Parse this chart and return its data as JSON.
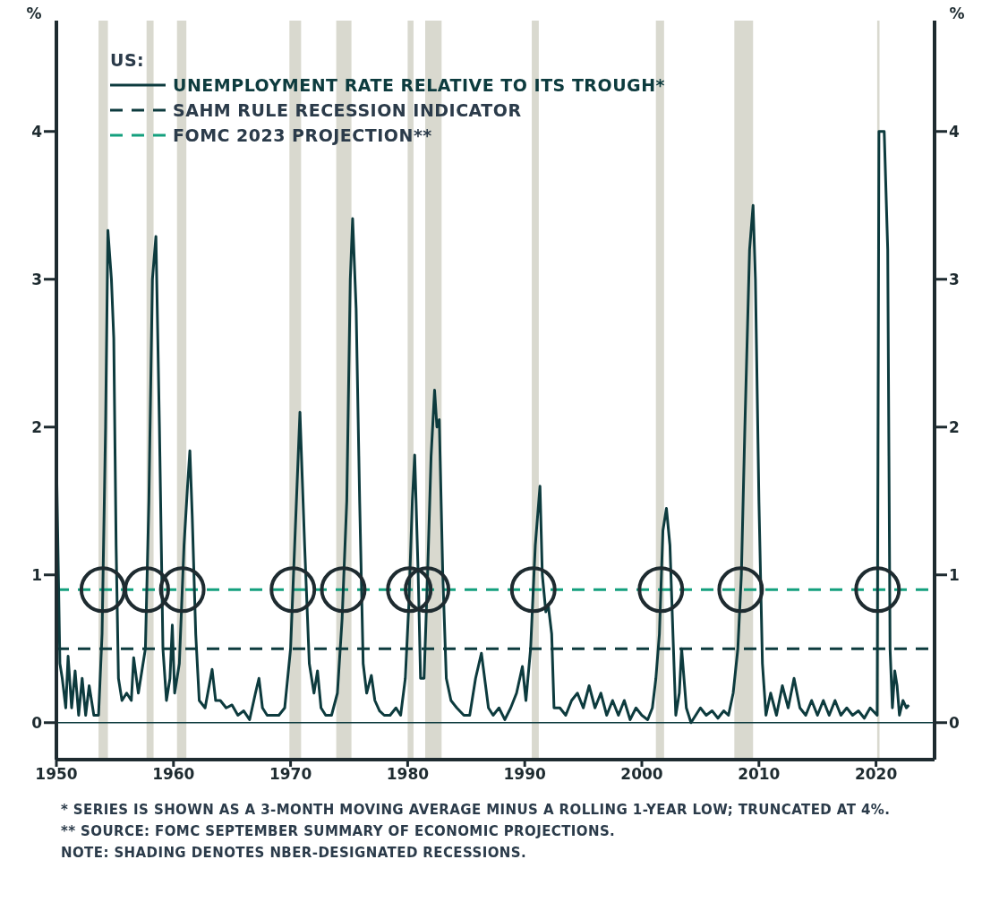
{
  "chart_data": {
    "type": "line",
    "title": "US:",
    "ylabel": "%",
    "y2label": "%",
    "xlim": [
      1950,
      2025
    ],
    "xticks": [
      1950,
      1960,
      1970,
      1980,
      1990,
      2000,
      2010,
      2020
    ],
    "ylim": [
      -0.25,
      4.75
    ],
    "yticks": [
      0,
      1,
      2,
      3,
      4
    ],
    "y2lim": [
      -0.25,
      4.75
    ],
    "y2ticks": [
      0,
      1,
      2,
      3,
      4
    ],
    "legend": "top left",
    "marker": "none",
    "line_style": "solid",
    "series": [
      {
        "name": "UNEMPLOYMENT RATE RELATIVE TO ITS TROUGH*",
        "color": "#0d3b3e",
        "x": [
          1950,
          1950.3,
          1950.5,
          1950.8,
          1951,
          1951.3,
          1951.6,
          1951.9,
          1952.2,
          1952.5,
          1952.8,
          1953.2,
          1953.6,
          1953.9,
          1954.2,
          1954.4,
          1954.7,
          1954.9,
          1955.1,
          1955.3,
          1955.6,
          1956,
          1956.4,
          1956.6,
          1957,
          1957.3,
          1957.6,
          1957.9,
          1958.2,
          1958.5,
          1958.8,
          1959.1,
          1959.4,
          1959.7,
          1959.9,
          1960.1,
          1960.5,
          1960.9,
          1961.2,
          1961.4,
          1961.6,
          1961.9,
          1962.2,
          1962.7,
          1963.3,
          1963.6,
          1964,
          1964.5,
          1965,
          1965.5,
          1966,
          1966.5,
          1967,
          1967.3,
          1967.6,
          1968,
          1968.5,
          1969,
          1969.5,
          1970,
          1970.4,
          1970.8,
          1971.2,
          1971.6,
          1972,
          1972.3,
          1972.6,
          1973,
          1973.5,
          1974,
          1974.4,
          1974.8,
          1975.1,
          1975.3,
          1975.6,
          1975.9,
          1976.2,
          1976.5,
          1976.9,
          1977.2,
          1977.6,
          1978,
          1978.5,
          1979,
          1979.4,
          1979.8,
          1980.1,
          1980.4,
          1980.6,
          1980.9,
          1981.1,
          1981.4,
          1981.7,
          1982,
          1982.3,
          1982.5,
          1982.7,
          1983,
          1983.3,
          1983.7,
          1984.2,
          1984.8,
          1985.3,
          1985.8,
          1986.3,
          1986.9,
          1987.3,
          1987.8,
          1988.3,
          1988.8,
          1989.3,
          1989.8,
          1990.1,
          1990.5,
          1990.9,
          1991.3,
          1991.5,
          1991.8,
          1992,
          1992.3,
          1992.5,
          1993,
          1993.5,
          1994,
          1994.5,
          1995,
          1995.5,
          1996,
          1996.5,
          1997,
          1997.5,
          1998,
          1998.5,
          1999,
          1999.5,
          2000,
          2000.5,
          2000.9,
          2001.2,
          2001.5,
          2001.8,
          2002.1,
          2002.4,
          2002.7,
          2002.9,
          2003.2,
          2003.4,
          2003.8,
          2004.2,
          2004.6,
          2005,
          2005.5,
          2006,
          2006.5,
          2007,
          2007.4,
          2007.8,
          2008.2,
          2008.5,
          2008.8,
          2009.2,
          2009.5,
          2009.7,
          2010,
          2010.3,
          2010.6,
          2011,
          2011.5,
          2012,
          2012.5,
          2013,
          2013.5,
          2014,
          2014.5,
          2015,
          2015.5,
          2016,
          2016.5,
          2017,
          2017.5,
          2018,
          2018.5,
          2019,
          2019.5,
          2020.1,
          2020.25,
          2020.7,
          2021,
          2021.2,
          2021.4,
          2021.6,
          2021.8,
          2022,
          2022.3,
          2022.6,
          2022.8
        ],
        "values": [
          1.8,
          0.4,
          0.3,
          0.1,
          0.45,
          0.1,
          0.35,
          0.05,
          0.3,
          0.05,
          0.25,
          0.05,
          0.05,
          0.6,
          2.0,
          3.33,
          3.0,
          2.6,
          1.2,
          0.3,
          0.15,
          0.2,
          0.15,
          0.44,
          0.2,
          0.35,
          0.5,
          1.5,
          3.0,
          3.29,
          2.0,
          0.5,
          0.15,
          0.3,
          0.66,
          0.2,
          0.4,
          1.2,
          1.6,
          1.84,
          1.4,
          0.6,
          0.15,
          0.1,
          0.36,
          0.15,
          0.15,
          0.1,
          0.12,
          0.05,
          0.08,
          0.02,
          0.2,
          0.3,
          0.1,
          0.05,
          0.05,
          0.05,
          0.1,
          0.5,
          1.3,
          2.1,
          1.2,
          0.4,
          0.2,
          0.35,
          0.1,
          0.05,
          0.05,
          0.2,
          0.7,
          1.5,
          3.0,
          3.41,
          2.8,
          1.5,
          0.4,
          0.2,
          0.32,
          0.15,
          0.08,
          0.05,
          0.05,
          0.1,
          0.05,
          0.3,
          0.8,
          1.5,
          1.81,
          1.0,
          0.3,
          0.3,
          1.0,
          1.8,
          2.25,
          2.0,
          2.05,
          1.0,
          0.3,
          0.15,
          0.1,
          0.05,
          0.05,
          0.3,
          0.47,
          0.1,
          0.05,
          0.1,
          0.02,
          0.1,
          0.2,
          0.38,
          0.15,
          0.5,
          1.2,
          1.6,
          1.0,
          0.75,
          0.8,
          0.6,
          0.1,
          0.1,
          0.05,
          0.15,
          0.2,
          0.1,
          0.25,
          0.1,
          0.2,
          0.05,
          0.15,
          0.05,
          0.15,
          0.02,
          0.1,
          0.05,
          0.02,
          0.1,
          0.3,
          0.6,
          1.3,
          1.45,
          1.2,
          0.5,
          0.05,
          0.2,
          0.5,
          0.1,
          0.0,
          0.05,
          0.1,
          0.05,
          0.08,
          0.03,
          0.08,
          0.05,
          0.2,
          0.5,
          1.0,
          2.0,
          3.2,
          3.5,
          3.0,
          1.5,
          0.4,
          0.05,
          0.2,
          0.05,
          0.25,
          0.1,
          0.3,
          0.1,
          0.05,
          0.15,
          0.05,
          0.15,
          0.05,
          0.15,
          0.05,
          0.1,
          0.05,
          0.08,
          0.03,
          0.1,
          0.05,
          4.0,
          4.0,
          3.2,
          0.5,
          0.1,
          0.35,
          0.25,
          0.05,
          0.15,
          0.1,
          0.12
        ]
      }
    ],
    "ref_lines": [
      {
        "axis": "y",
        "value": 0,
        "color": "#0d3b3e",
        "line_style": "solid"
      },
      {
        "axis": "y",
        "value": 0.5,
        "label": "SAHM RULE RECESSION INDICATOR",
        "color": "#0d3b3e",
        "line_style": "dashed"
      },
      {
        "axis": "y",
        "value": 0.9,
        "label": "FOMC 2023 PROJECTION**",
        "color": "#14a07e",
        "line_style": "dashed"
      }
    ],
    "bands": [
      {
        "axis": "x",
        "from": 1953.6,
        "to": 1954.4,
        "color": "#d9d9cf"
      },
      {
        "axis": "x",
        "from": 1957.7,
        "to": 1958.3,
        "color": "#d9d9cf"
      },
      {
        "axis": "x",
        "from": 1960.3,
        "to": 1961.1,
        "color": "#d9d9cf"
      },
      {
        "axis": "x",
        "from": 1969.9,
        "to": 1970.9,
        "color": "#d9d9cf"
      },
      {
        "axis": "x",
        "from": 1973.9,
        "to": 1975.2,
        "color": "#d9d9cf"
      },
      {
        "axis": "x",
        "from": 1980.0,
        "to": 1980.5,
        "color": "#d9d9cf"
      },
      {
        "axis": "x",
        "from": 1981.5,
        "to": 1982.9,
        "color": "#d9d9cf"
      },
      {
        "axis": "x",
        "from": 1990.6,
        "to": 1991.2,
        "color": "#d9d9cf"
      },
      {
        "axis": "x",
        "from": 2001.2,
        "to": 2001.9,
        "color": "#d9d9cf"
      },
      {
        "axis": "x",
        "from": 2007.9,
        "to": 2009.5,
        "color": "#d9d9cf"
      },
      {
        "axis": "x",
        "from": 2020.1,
        "to": 2020.3,
        "color": "#d9d9cf"
      }
    ],
    "annotations": [
      "* SERIES IS SHOWN AS A 3-MONTH MOVING AVERAGE MINUS A ROLLING 1-YEAR LOW; TRUNCATED AT 4%.",
      "** SOURCE: FOMC SEPTEMBER SUMMARY OF ECONOMIC PROJECTIONS.",
      "NOTE: SHADING DENOTES NBER-DESIGNATED RECESSIONS."
    ]
  }
}
